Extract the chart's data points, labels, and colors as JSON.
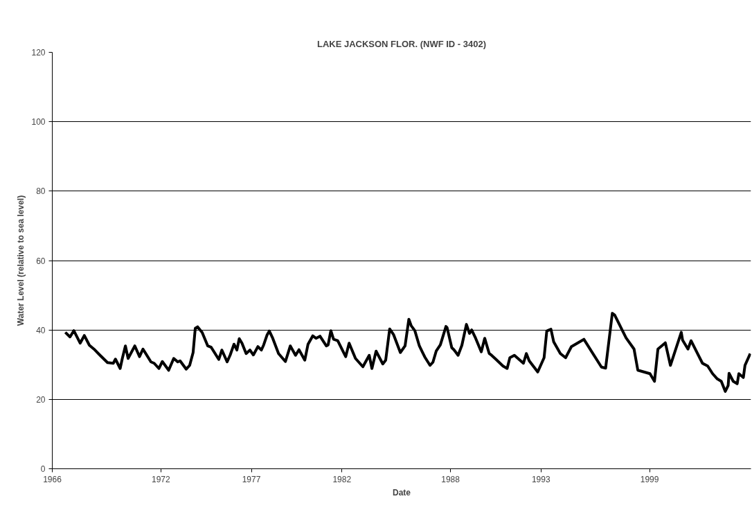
{
  "chart_data": {
    "type": "line",
    "title": "LAKE JACKSON FLOR. (NWF ID - 3402)",
    "xlabel": "Date",
    "ylabel": "Water Level (relative to sea level)",
    "x": [
      1966.72,
      1966.98,
      1967.19,
      1967.54,
      1967.77,
      1968.05,
      1968.3,
      1968.68,
      1969.05,
      1969.37,
      1969.49,
      1969.75,
      1969.87,
      1970.04,
      1970.19,
      1970.56,
      1970.82,
      1971.01,
      1971.45,
      1971.63,
      1971.89,
      1972.08,
      1972.43,
      1972.71,
      1972.93,
      1973.06,
      1973.4,
      1973.59,
      1973.78,
      1973.9,
      1974.03,
      1974.28,
      1974.59,
      1974.78,
      1975.2,
      1975.37,
      1975.66,
      1975.83,
      1976.04,
      1976.2,
      1976.33,
      1976.48,
      1976.71,
      1976.92,
      1977.11,
      1977.36,
      1977.55,
      1977.68,
      1977.87,
      1977.99,
      1978.18,
      1978.5,
      1978.88,
      1979.15,
      1979.44,
      1979.63,
      1979.95,
      1980.13,
      1980.39,
      1980.57,
      1980.79,
      1981.14,
      1981.24,
      1981.39,
      1981.54,
      1981.77,
      1982.21,
      1982.4,
      1982.75,
      1983.16,
      1983.51,
      1983.66,
      1983.89,
      1984.26,
      1984.42,
      1984.64,
      1984.86,
      1985.23,
      1985.49,
      1985.7,
      1985.83,
      1986.03,
      1986.28,
      1986.58,
      1986.87,
      1987.03,
      1987.21,
      1987.44,
      1987.75,
      1987.81,
      1988.07,
      1988.19,
      1988.42,
      1988.63,
      1988.88,
      1989.05,
      1989.17,
      1989.39,
      1989.7,
      1989.89,
      1990.14,
      1990.27,
      1990.52,
      1990.9,
      1991.13,
      1991.28,
      1991.53,
      1992.03,
      1992.19,
      1992.35,
      1992.82,
      1993.17,
      1993.32,
      1993.55,
      1993.7,
      1994.07,
      1994.36,
      1994.68,
      1995.37,
      1996.34,
      1996.57,
      1996.94,
      1997.07,
      1997.7,
      1998.14,
      1998.35,
      1999.02,
      1999.27,
      1999.46,
      1999.87,
      2000.15,
      2000.75,
      2000.82,
      2001.12,
      2001.29,
      2001.92,
      2002.21,
      2002.48,
      2002.74,
      2002.96,
      2003.18,
      2003.34,
      2003.39,
      2003.62,
      2003.84,
      2003.93,
      2004.18,
      2004.27,
      2004.56
    ],
    "series": [
      {
        "color": "#000000",
        "values": [
          39.3,
          38.0,
          39.8,
          36.2,
          38.4,
          35.6,
          34.5,
          32.5,
          30.6,
          30.4,
          31.6,
          28.9,
          31.8,
          35.4,
          31.8,
          35.4,
          32.3,
          34.5,
          30.8,
          30.4,
          28.9,
          30.9,
          28.4,
          31.8,
          30.8,
          31.1,
          28.7,
          29.8,
          33.5,
          40.5,
          40.9,
          39.3,
          35.4,
          35.0,
          31.5,
          34.2,
          30.8,
          32.8,
          35.9,
          34.2,
          37.5,
          36.2,
          33.2,
          34.2,
          32.8,
          35.2,
          34.2,
          35.7,
          38.6,
          39.7,
          37.6,
          33.2,
          30.9,
          35.4,
          32.7,
          34.3,
          31.3,
          35.9,
          38.3,
          37.6,
          38.2,
          35.4,
          35.7,
          39.8,
          37.3,
          36.9,
          32.3,
          36.2,
          31.8,
          29.4,
          32.7,
          28.9,
          33.9,
          30.2,
          31.3,
          40.3,
          38.6,
          33.5,
          35.4,
          43.1,
          41.2,
          39.8,
          35.4,
          32.2,
          29.8,
          30.7,
          33.9,
          35.7,
          41.0,
          40.7,
          34.9,
          34.3,
          32.7,
          35.6,
          41.6,
          39.0,
          40.0,
          37.6,
          33.7,
          37.6,
          33.2,
          32.7,
          31.5,
          29.6,
          28.9,
          32.0,
          32.7,
          30.4,
          33.2,
          31.1,
          27.9,
          32.0,
          39.7,
          40.2,
          36.6,
          33.2,
          32.0,
          35.2,
          37.3,
          29.3,
          29.0,
          44.8,
          44.3,
          37.7,
          34.5,
          28.4,
          27.4,
          25.2,
          34.5,
          36.3,
          29.8,
          39.3,
          37.1,
          34.5,
          36.9,
          30.4,
          29.6,
          27.4,
          25.9,
          25.2,
          22.3,
          24.0,
          27.5,
          25.2,
          24.5,
          27.4,
          26.3,
          29.8,
          33.2
        ]
      }
    ],
    "xlim": [
      1966,
      2004.6
    ],
    "xticks": [
      1966,
      1972,
      1977,
      1982,
      1988,
      1993,
      1999
    ],
    "ylim": [
      0,
      120
    ],
    "yticks": [
      0,
      20,
      40,
      60,
      80,
      100,
      120
    ],
    "grid": "y",
    "legend": false,
    "line_style": "solid",
    "marker": "none"
  }
}
